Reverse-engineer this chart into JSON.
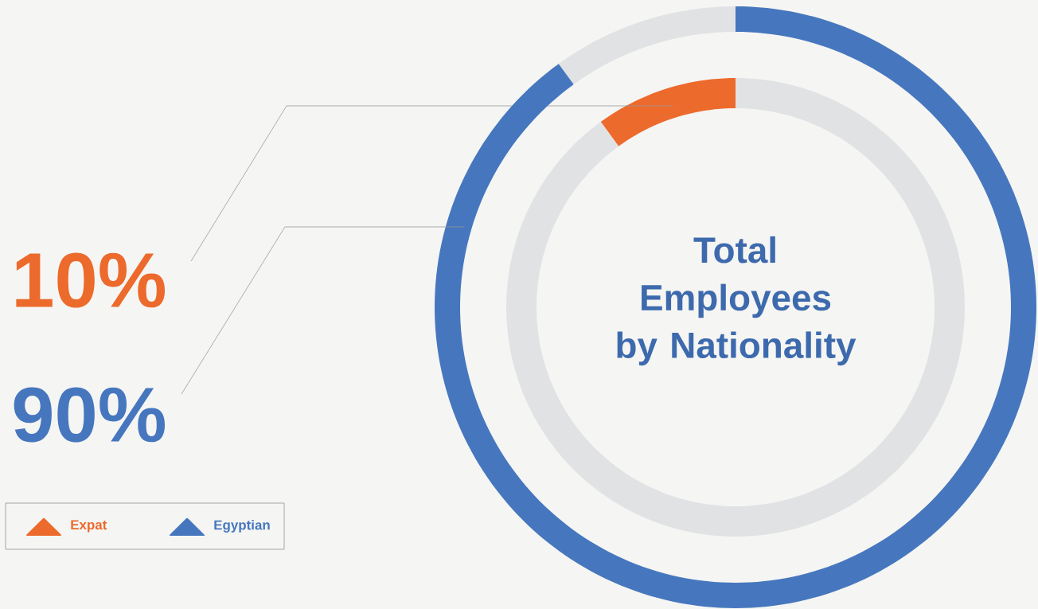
{
  "chart_data": {
    "type": "donut",
    "title": "Total Employees by Nationality",
    "series": [
      {
        "name": "Expat",
        "color": "#ec6a2c",
        "values": [
          10,
          90
        ],
        "colors": [
          "#ec6a2c",
          "#e1e2e4"
        ],
        "value_labels": [
          "10%",
          null
        ]
      },
      {
        "name": "Egyptian",
        "color": "#4677be",
        "values": [
          10,
          90
        ],
        "colors": [
          "#e1e2e4",
          "#4677be"
        ],
        "value_labels": [
          null,
          "90%"
        ]
      }
    ],
    "legend": "bottom left"
  }
}
